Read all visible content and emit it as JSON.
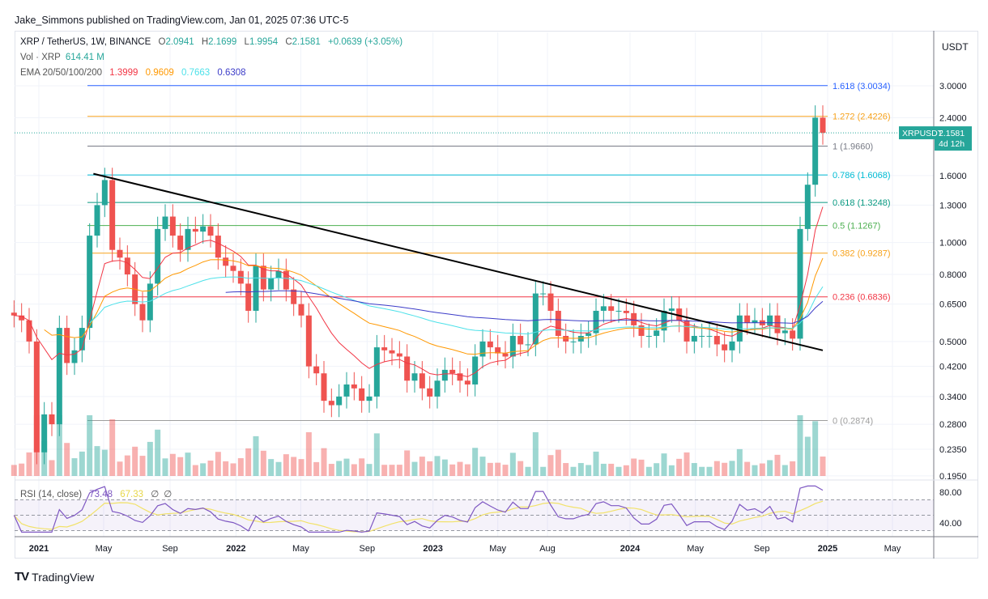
{
  "header": {
    "published": "Jake_Simmons published on TradingView.com, Jan 01, 2025 07:36 UTC-5"
  },
  "legend": {
    "symbol": "XRP / TetherUS, 1W, BINANCE",
    "o_label": "O",
    "o": "2.0941",
    "h_label": "H",
    "h": "2.1699",
    "l_label": "L",
    "l": "1.9954",
    "c_label": "C",
    "c": "2.1581",
    "change": "+0.0639 (+3.05%)",
    "vol_label": "Vol · XRP",
    "vol": "614.41 M",
    "ema_label": "EMA 20/50/100/200",
    "ema20": "1.3999",
    "ema50": "0.9609",
    "ema100": "0.7663",
    "ema200": "0.6308"
  },
  "rsi": {
    "label": "RSI (14, close)",
    "value": "73.48",
    "ma": "67.33",
    "n1": "∅",
    "n2": "∅",
    "axis": [
      "80.00",
      "40.00"
    ]
  },
  "price_axis": {
    "unit": "USDT",
    "ticks": [
      "3.0000",
      "2.4000",
      "1.6000",
      "1.3000",
      "1.0000",
      "0.8000",
      "0.6500",
      "0.5000",
      "0.4200",
      "0.3400",
      "0.2800",
      "0.2350",
      "0.1950"
    ]
  },
  "last_price": {
    "symbol": "XRPUSDT",
    "price": "2.1581",
    "countdown": "4d 12h"
  },
  "time_axis": [
    {
      "label": "2021",
      "date": "2021-01-01",
      "bold": true
    },
    {
      "label": "May",
      "date": "2021-05-01"
    },
    {
      "label": "Sep",
      "date": "2021-09-01"
    },
    {
      "label": "2022",
      "date": "2022-01-01",
      "bold": true
    },
    {
      "label": "May",
      "date": "2022-05-01"
    },
    {
      "label": "Sep",
      "date": "2022-09-01"
    },
    {
      "label": "2023",
      "date": "2023-01-01",
      "bold": true
    },
    {
      "label": "May",
      "date": "2023-05-01"
    },
    {
      "label": "Aug",
      "date": "2023-08-01"
    },
    {
      "label": "2024",
      "date": "2024-01-01",
      "bold": true
    },
    {
      "label": "May",
      "date": "2024-05-01"
    },
    {
      "label": "Sep",
      "date": "2024-09-01"
    },
    {
      "label": "2025",
      "date": "2025-01-01",
      "bold": true
    },
    {
      "label": "May",
      "date": "2025-05-01"
    }
  ],
  "brand": "TradingView",
  "chart_data": {
    "type": "candlestick",
    "scale": "log",
    "ylim": [
      0.195,
      3.0
    ],
    "grid": true,
    "colors": {
      "up": "#26a69a",
      "down": "#ef5350",
      "ema20": "#f23645",
      "ema50": "#ff9800",
      "ema100": "#4de1e9",
      "ema200": "#3c3cc8",
      "trendline": "#000000",
      "rsi": "#7e57c2",
      "rsi_ma": "#f2e26a"
    },
    "start_date": "2020-11-16",
    "interval_days": 14,
    "closes": [
      0.6,
      0.58,
      0.5,
      0.23,
      0.3,
      0.28,
      0.55,
      0.43,
      0.47,
      0.55,
      1.05,
      1.3,
      1.55,
      0.95,
      0.9,
      0.8,
      0.65,
      0.58,
      0.75,
      1.1,
      1.2,
      1.05,
      0.95,
      1.1,
      1.08,
      1.12,
      1.05,
      0.9,
      0.85,
      0.82,
      0.75,
      0.62,
      0.85,
      0.72,
      0.78,
      0.82,
      0.72,
      0.65,
      0.6,
      0.42,
      0.4,
      0.33,
      0.32,
      0.34,
      0.37,
      0.36,
      0.33,
      0.34,
      0.48,
      0.47,
      0.46,
      0.45,
      0.38,
      0.4,
      0.36,
      0.34,
      0.38,
      0.41,
      0.4,
      0.38,
      0.37,
      0.45,
      0.5,
      0.48,
      0.46,
      0.45,
      0.52,
      0.49,
      0.49,
      0.7,
      0.7,
      0.62,
      0.52,
      0.5,
      0.5,
      0.52,
      0.53,
      0.62,
      0.64,
      0.62,
      0.62,
      0.61,
      0.56,
      0.52,
      0.52,
      0.54,
      0.62,
      0.63,
      0.58,
      0.5,
      0.52,
      0.52,
      0.52,
      0.49,
      0.47,
      0.5,
      0.6,
      0.57,
      0.58,
      0.56,
      0.6,
      0.53,
      0.54,
      0.51,
      1.1,
      1.5,
      2.4,
      2.1581
    ],
    "trendline": {
      "from": {
        "date": "2021-04-12",
        "price": 1.62
      },
      "to": {
        "date": "2024-12-23",
        "price": 0.47
      }
    },
    "fib_levels": [
      {
        "label": "1.618 (3.0034)",
        "price": 3.0034,
        "color": "#2962ff"
      },
      {
        "label": "1.272 (2.4226)",
        "price": 2.4226,
        "color": "#f7a21b"
      },
      {
        "label": "1 (1.9660)",
        "price": 1.966,
        "color": "#787b86"
      },
      {
        "label": "0.786 (1.6068)",
        "price": 1.6068,
        "color": "#00bcd4"
      },
      {
        "label": "0.618 (1.3248)",
        "price": 1.3248,
        "color": "#089981"
      },
      {
        "label": "0.5 (1.1267)",
        "price": 1.1267,
        "color": "#4caf50"
      },
      {
        "label": "0.382 (0.9287)",
        "price": 0.9287,
        "color": "#f7a21b"
      },
      {
        "label": "0.236 (0.6836)",
        "price": 0.6836,
        "color": "#f23645"
      },
      {
        "label": "0 (0.2874)",
        "price": 0.2874,
        "color": "#9e9e9e"
      }
    ]
  }
}
